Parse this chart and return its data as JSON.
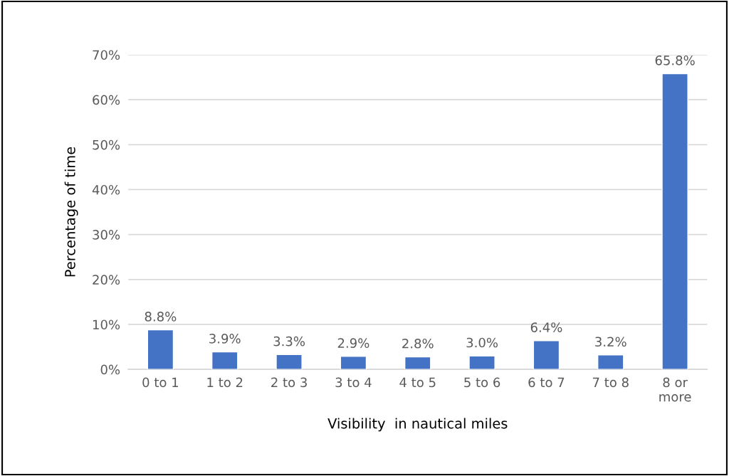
{
  "chart_data": {
    "type": "bar",
    "xlabel": "Visibility  in nautical miles",
    "ylabel": "Percentage of time",
    "categories": [
      "0 to 1",
      "1 to 2",
      "2 to 3",
      "3 to 4",
      "4 to 5",
      "5 to 6",
      "6 to 7",
      "7 to 8",
      "8 or\nmore"
    ],
    "values": [
      8.8,
      3.9,
      3.3,
      2.9,
      2.8,
      3.0,
      6.4,
      3.2,
      65.8
    ],
    "value_labels": [
      "8.8%",
      "3.9%",
      "3.3%",
      "2.9%",
      "2.8%",
      "3.0%",
      "6.4%",
      "3.2%",
      "65.8%"
    ],
    "color": "#4472c4",
    "ylim": [
      0,
      70
    ],
    "yticks": [
      {
        "value": 0,
        "label": "0%"
      },
      {
        "value": 10,
        "label": "10%"
      },
      {
        "value": 20,
        "label": "20%"
      },
      {
        "value": 30,
        "label": "30%"
      },
      {
        "value": 40,
        "label": "40%"
      },
      {
        "value": 50,
        "label": "50%"
      },
      {
        "value": 60,
        "label": "60%"
      },
      {
        "value": 70,
        "label": "70%"
      }
    ],
    "grid": "y",
    "legend": false
  }
}
